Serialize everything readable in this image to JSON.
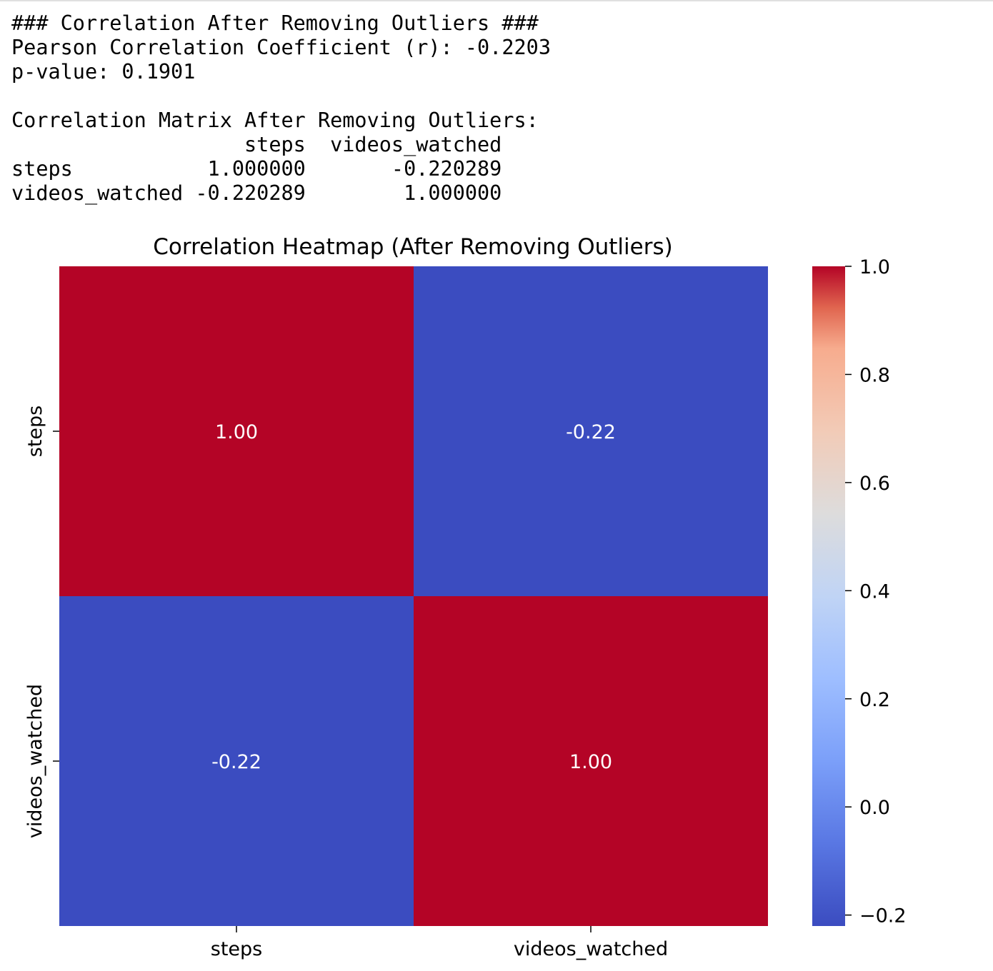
{
  "output": {
    "lines": [
      "### Correlation After Removing Outliers ###",
      "Pearson Correlation Coefficient (r): -0.2203",
      "p-value: 0.1901",
      "",
      "Correlation Matrix After Removing Outliers:",
      "                   steps  videos_watched",
      "steps           1.000000       -0.220289",
      "videos_watched -0.220289        1.000000"
    ]
  },
  "chart_data": {
    "type": "heatmap",
    "title": "Correlation Heatmap (After Removing Outliers)",
    "x_categories": [
      "steps",
      "videos_watched"
    ],
    "y_categories": [
      "steps",
      "videos_watched"
    ],
    "values": [
      [
        1.0,
        -0.220289
      ],
      [
        -0.220289,
        1.0
      ]
    ],
    "annotations": [
      [
        "1.00",
        "-0.22"
      ],
      [
        "-0.22",
        "1.00"
      ]
    ],
    "colormap": "coolwarm",
    "color_low": "#3b4cc0",
    "color_high": "#b40426",
    "annotation_color": "#ffffff",
    "colorbar": {
      "vmin": -0.220289,
      "vmax": 1.0,
      "ticks": [
        1.0,
        0.8,
        0.6,
        0.4,
        0.2,
        0.0,
        -0.2
      ],
      "tick_labels": [
        "1.0",
        "0.8",
        "0.6",
        "0.4",
        "0.2",
        "0.0",
        "−0.2"
      ],
      "placement": "right"
    }
  }
}
